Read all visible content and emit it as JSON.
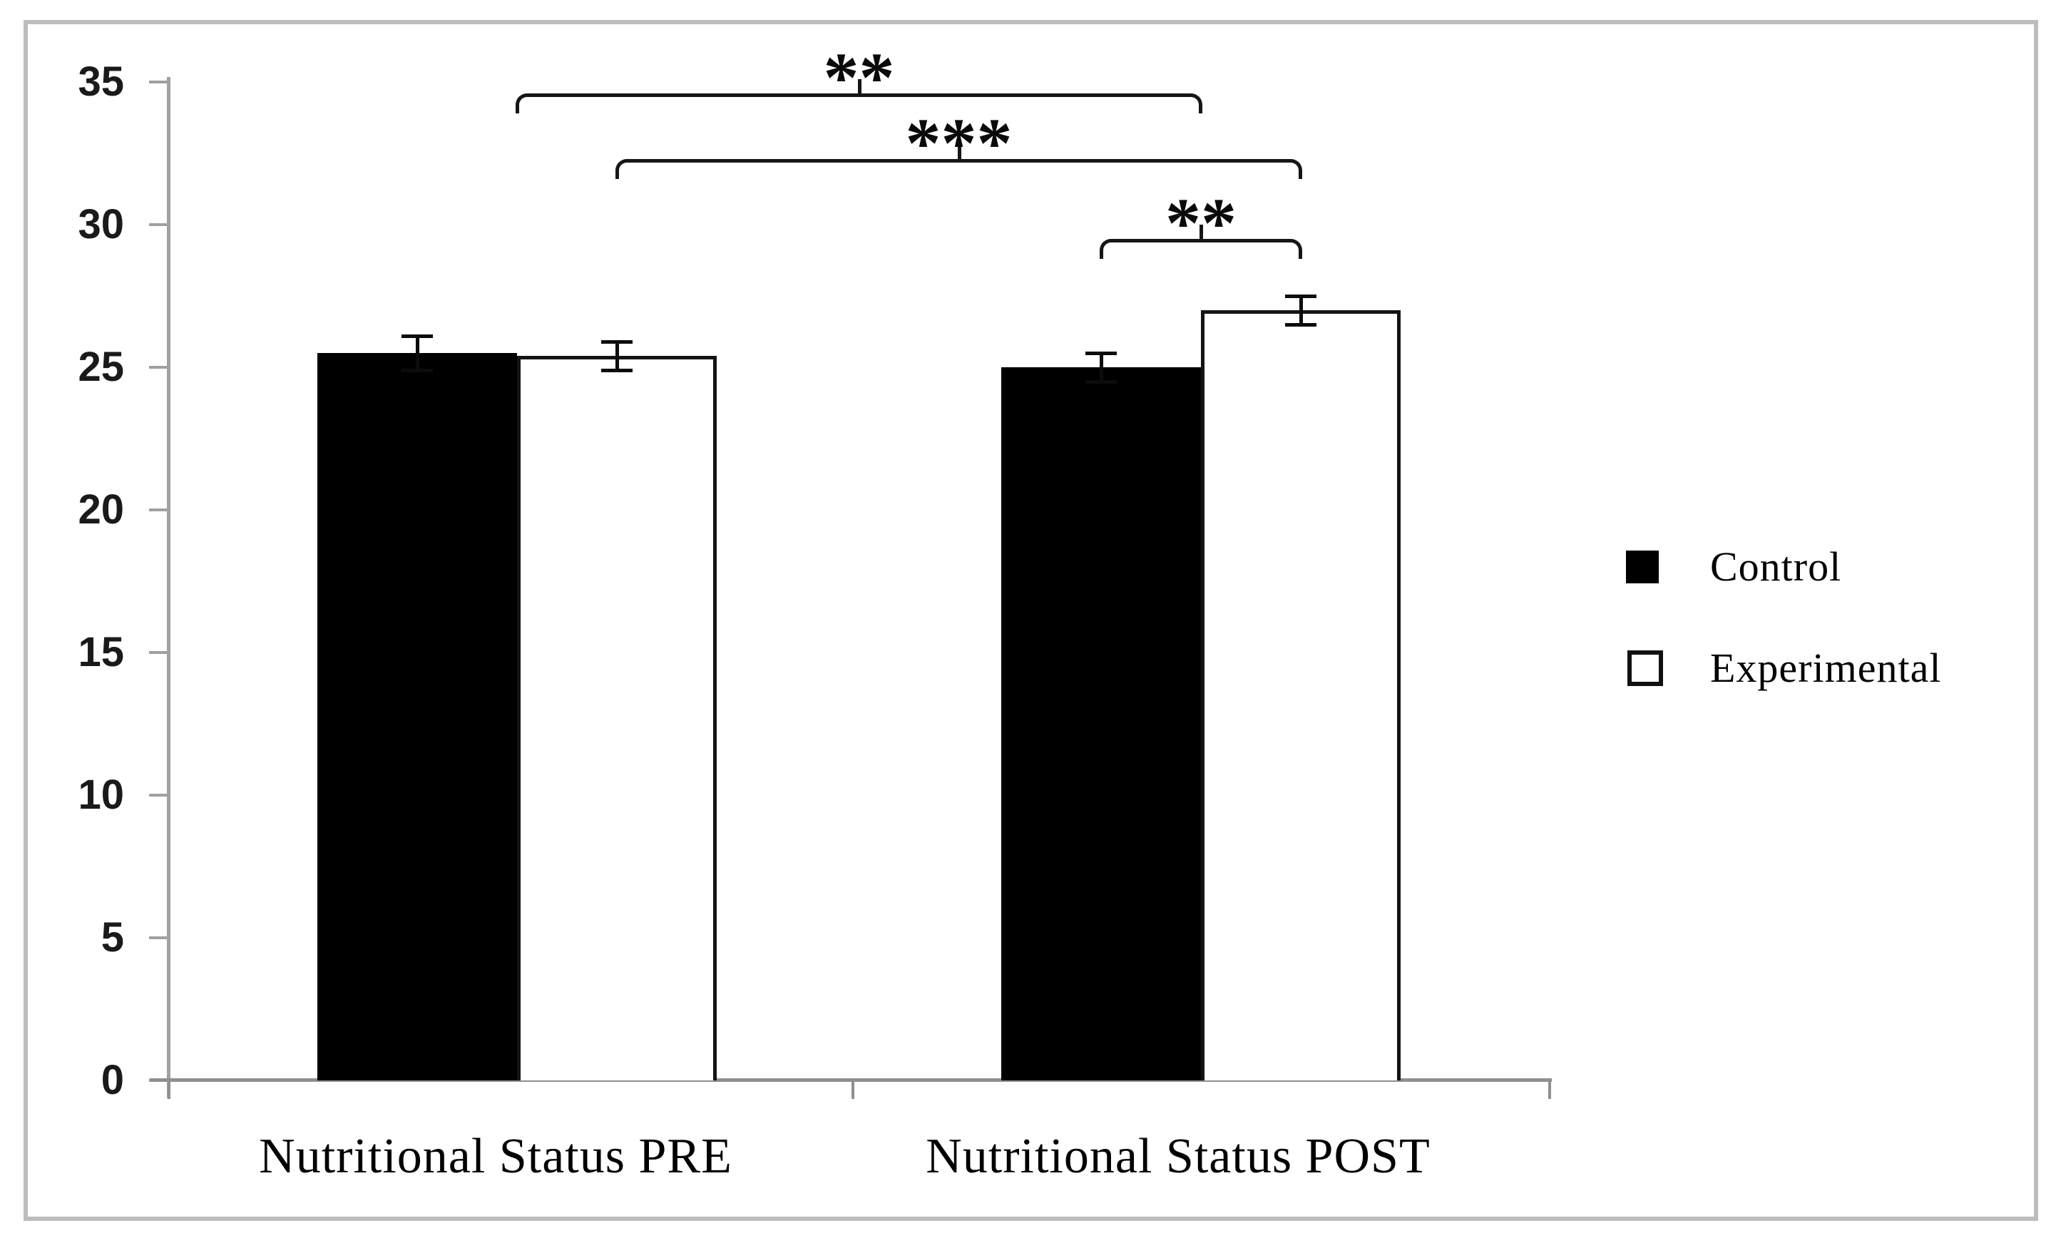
{
  "figure": {
    "background": "#ffffff",
    "frame_color": "#bdbdbd",
    "axis_color": "#a0a0a0",
    "baseline_color": "#8f8f8f"
  },
  "chart_data": {
    "type": "bar",
    "title": "",
    "xlabel": "",
    "ylabel": "",
    "categories": [
      "Nutritional Status PRE",
      "Nutritional Status POST"
    ],
    "series": [
      {
        "name": "Control",
        "fill": "#000000",
        "border": "#000000",
        "values": [
          25.5,
          25.0
        ],
        "errors": [
          0.6,
          0.5
        ]
      },
      {
        "name": "Experimental",
        "fill": "#ffffff",
        "border": "#141414",
        "values": [
          25.4,
          27.0
        ],
        "errors": [
          0.5,
          0.5
        ]
      }
    ],
    "ylim": [
      0,
      35
    ],
    "yticks": [
      0,
      5,
      10,
      15,
      20,
      25,
      30,
      35
    ],
    "grid": false,
    "legend_position": "right",
    "significance_brackets": [
      {
        "label": "**",
        "from": {
          "category": 0
        },
        "to": {
          "category": 1
        },
        "height": 34.6
      },
      {
        "label": "***",
        "from": {
          "category": 0,
          "series": 1
        },
        "to": {
          "category": 1,
          "series": 1
        },
        "height": 32.3
      },
      {
        "label": "**",
        "from": {
          "category": 1,
          "series": 0
        },
        "to": {
          "category": 1,
          "series": 1
        },
        "height": 29.5
      }
    ]
  },
  "legend": {
    "items": [
      {
        "label": "Control",
        "swatch": "filled-black"
      },
      {
        "label": "Experimental",
        "swatch": "outlined-white"
      }
    ]
  }
}
